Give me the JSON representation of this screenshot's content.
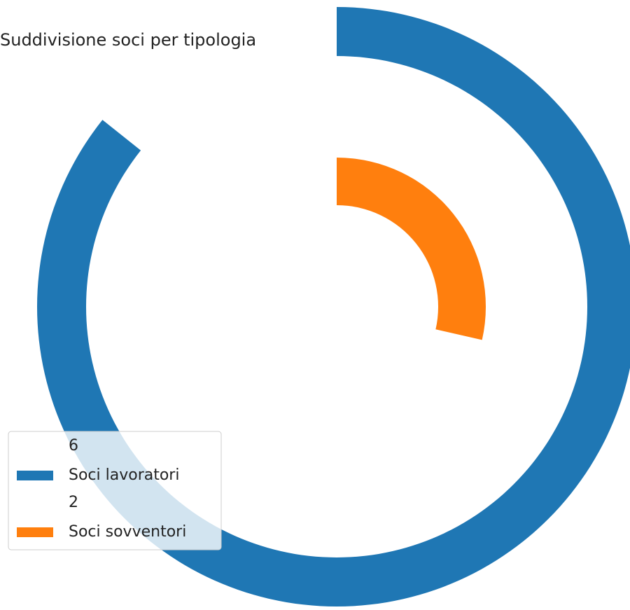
{
  "chart_data": {
    "type": "radial-bar",
    "title": "Suddivisione soci per tipologia",
    "categories": [
      "Soci lavoratori",
      "Soci sovventori"
    ],
    "values": [
      6,
      2
    ],
    "colors": [
      "#1f77b4",
      "#ff7f0e"
    ],
    "xlim": [
      0,
      7
    ],
    "legend": "lower left"
  }
}
